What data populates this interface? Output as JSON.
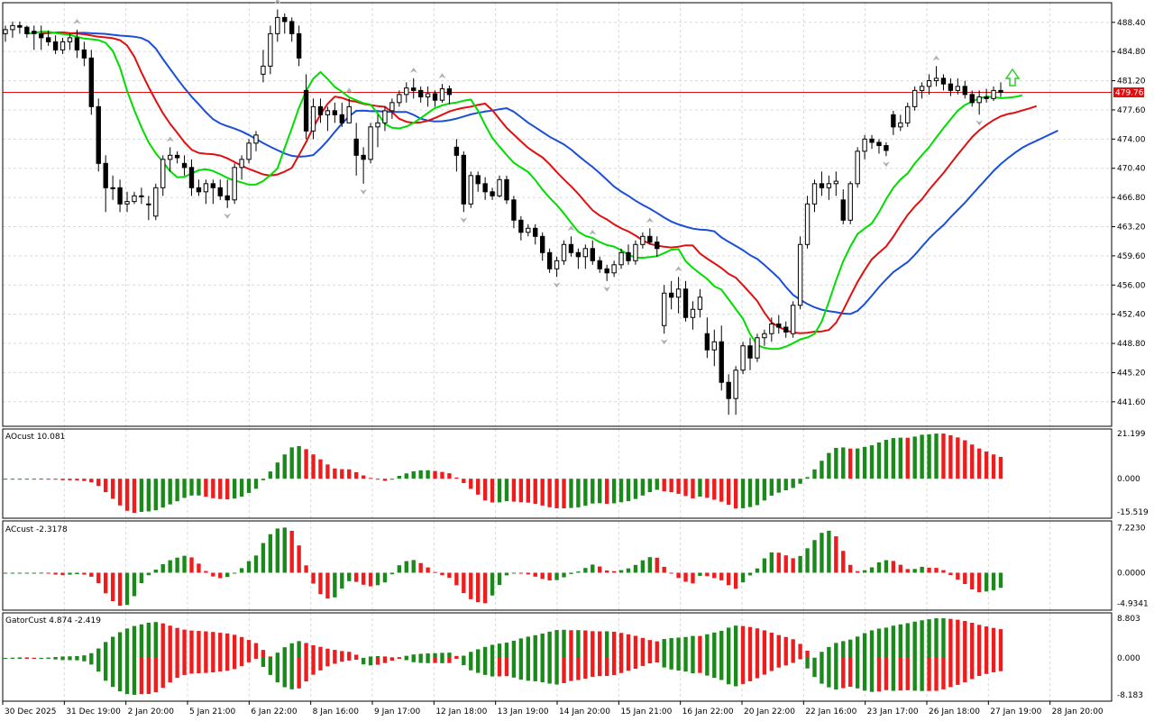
{
  "chart_data": {
    "type": "candlestick",
    "colors": {
      "frame": "#000000",
      "grid": "#d9d9d9",
      "bull_candle": "#ffffff",
      "bear_candle": "#000000",
      "jaw": "#1a4fd6",
      "teeth": "#e01010",
      "lips": "#00dd00",
      "up_bar": "#1a8a1a",
      "down_bar": "#ee1c1c",
      "price_line": "#e01010",
      "fractal": "#b0b0b0"
    },
    "x_labels": [
      "30 Dec 2025",
      "31 Dec 19:00",
      "2 Jan 20:00",
      "5 Jan 21:00",
      "6 Jan 22:00",
      "8 Jan 16:00",
      "9 Jan 17:00",
      "12 Jan 18:00",
      "13 Jan 19:00",
      "14 Jan 20:00",
      "15 Jan 21:00",
      "16 Jan 22:00",
      "20 Jan 22:00",
      "22 Jan 16:00",
      "23 Jan 17:00",
      "26 Jan 18:00",
      "27 Jan 19:00",
      "28 Jan 20:00"
    ],
    "main": {
      "y_ticks": [
        "488.40",
        "484.80",
        "481.20",
        "477.60",
        "474.00",
        "470.40",
        "466.80",
        "463.20",
        "459.60",
        "456.00",
        "452.40",
        "448.80",
        "445.20",
        "441.60"
      ],
      "ylim": [
        438.8,
        490.6
      ],
      "current_price": "479.76",
      "current_price_value": 479.76,
      "candles": [
        [
          487,
          488,
          486,
          487.5
        ],
        [
          487.5,
          488.5,
          486.5,
          488
        ],
        [
          488,
          488.5,
          487,
          487.8
        ],
        [
          487.8,
          488,
          486.5,
          487
        ],
        [
          487.3,
          488,
          485,
          487
        ],
        [
          487,
          488,
          485,
          486.5
        ],
        [
          486.5,
          487.4,
          485.5,
          486
        ],
        [
          486,
          486.8,
          484.5,
          485
        ],
        [
          485,
          486.5,
          484.5,
          486
        ],
        [
          486,
          487,
          485,
          486.5
        ],
        [
          486.5,
          487.5,
          484,
          485
        ],
        [
          485,
          486,
          483,
          484
        ],
        [
          484,
          485,
          477,
          478
        ],
        [
          478,
          479,
          470,
          471
        ],
        [
          471,
          472,
          465,
          468
        ],
        [
          468,
          469.5,
          466.5,
          468
        ],
        [
          468,
          469,
          465,
          466
        ],
        [
          466,
          467.5,
          465,
          466.3
        ],
        [
          466.3,
          467.5,
          466,
          467
        ],
        [
          467,
          468,
          466,
          467
        ],
        [
          466,
          467,
          464,
          466
        ],
        [
          464.5,
          468.5,
          464,
          468
        ],
        [
          468,
          472,
          467,
          471.5
        ],
        [
          471.5,
          473,
          470,
          472
        ],
        [
          472,
          472.5,
          471,
          471.7
        ],
        [
          471,
          472,
          469.5,
          470.5
        ],
        [
          470.5,
          471.5,
          467,
          468
        ],
        [
          468,
          469,
          467,
          467.5
        ],
        [
          467.5,
          469,
          466,
          468.5
        ],
        [
          468.5,
          469,
          466,
          468
        ],
        [
          468,
          469,
          466.5,
          467
        ],
        [
          467,
          469,
          465.5,
          466.5
        ],
        [
          466.5,
          471,
          466,
          470.5
        ],
        [
          470.5,
          472,
          469,
          471.5
        ],
        [
          471.5,
          474,
          471,
          473.5
        ],
        [
          473.5,
          475,
          472.5,
          474.5
        ],
        [
          482,
          485,
          481,
          483
        ],
        [
          483,
          488,
          482,
          487
        ],
        [
          487,
          490,
          486,
          489
        ],
        [
          489,
          489.5,
          487,
          488.5
        ],
        [
          488.5,
          489,
          486,
          487
        ],
        [
          487,
          488,
          483,
          484
        ],
        [
          480,
          482,
          474,
          475
        ],
        [
          475,
          479,
          474,
          478
        ],
        [
          478,
          479,
          476,
          477
        ],
        [
          477,
          478,
          475,
          477.5
        ],
        [
          477.5,
          478.5,
          476,
          477
        ],
        [
          477,
          478.5,
          475.5,
          476
        ],
        [
          476,
          479,
          476,
          478
        ],
        [
          474,
          476,
          469.5,
          472
        ],
        [
          472,
          473,
          468.5,
          471.5
        ],
        [
          471.5,
          476,
          471,
          475.5
        ],
        [
          475.5,
          477,
          473,
          476
        ],
        [
          476,
          478,
          475,
          477.5
        ],
        [
          477.5,
          479,
          476.5,
          478.5
        ],
        [
          478.5,
          480,
          478,
          479.5
        ],
        [
          479.5,
          481,
          478.5,
          480.3
        ],
        [
          480.3,
          481.5,
          479,
          480
        ],
        [
          480,
          480.5,
          478.5,
          479.2
        ],
        [
          479.2,
          480.5,
          478,
          479.6
        ],
        [
          479.6,
          480,
          478,
          478.8
        ],
        [
          478.8,
          480.8,
          478.5,
          480.2
        ],
        [
          480.2,
          480.6,
          478.3,
          479.5
        ],
        [
          473,
          474,
          470,
          472
        ],
        [
          472,
          472.5,
          465,
          466
        ],
        [
          466,
          470,
          465.5,
          469.5
        ],
        [
          469.5,
          470,
          467.5,
          468.5
        ],
        [
          468.5,
          469.3,
          466.5,
          467.5
        ],
        [
          467.5,
          468,
          466.5,
          467
        ],
        [
          467,
          469.5,
          466.8,
          469
        ],
        [
          469,
          469.5,
          466,
          466.5
        ],
        [
          466.5,
          467,
          463,
          464
        ],
        [
          464,
          464.5,
          461.5,
          462.5
        ],
        [
          462.5,
          463.5,
          462,
          463
        ],
        [
          463,
          463.5,
          461,
          462
        ],
        [
          462,
          462.5,
          459,
          460
        ],
        [
          460,
          460.5,
          457.5,
          458
        ],
        [
          458,
          459.5,
          457,
          459
        ],
        [
          459,
          461.5,
          458.5,
          461
        ],
        [
          461,
          462,
          459.5,
          460
        ],
        [
          460,
          460.5,
          458,
          459.5
        ],
        [
          459.5,
          461,
          458,
          460.5
        ],
        [
          460.5,
          461.5,
          458.5,
          459
        ],
        [
          459,
          459.5,
          457.5,
          458
        ],
        [
          458,
          458.5,
          456.5,
          457.5
        ],
        [
          457.5,
          459,
          457,
          458.5
        ],
        [
          458.5,
          460.5,
          458,
          460
        ],
        [
          460,
          461,
          458.5,
          459
        ],
        [
          459,
          461.5,
          458.5,
          461
        ],
        [
          461,
          462.5,
          460.5,
          462
        ],
        [
          462,
          463,
          461,
          461.3
        ],
        [
          461.3,
          462,
          459.5,
          460.5
        ],
        [
          451,
          456,
          450,
          455
        ],
        [
          455,
          456.5,
          453,
          454.5
        ],
        [
          454.5,
          457,
          452.5,
          455.5
        ],
        [
          455.5,
          456.5,
          451.5,
          452
        ],
        [
          452,
          454,
          450.5,
          453
        ],
        [
          453,
          455.5,
          452,
          454.5
        ],
        [
          450,
          452,
          447,
          448
        ],
        [
          448,
          450.5,
          446,
          449
        ],
        [
          449,
          451,
          443,
          444
        ],
        [
          444,
          445,
          440,
          442
        ],
        [
          442,
          446,
          440,
          445.5
        ],
        [
          445.5,
          449,
          445,
          448.5
        ],
        [
          448.5,
          449.5,
          445.5,
          447
        ],
        [
          447,
          450,
          446.5,
          449.5
        ],
        [
          449.5,
          450.5,
          448.5,
          450
        ],
        [
          450,
          452,
          449,
          451.2
        ],
        [
          451.2,
          452.3,
          450,
          450.8
        ],
        [
          450.8,
          451.5,
          449.5,
          450.2
        ],
        [
          450,
          454,
          449.5,
          453.5
        ],
        [
          453.5,
          462,
          453,
          461
        ],
        [
          461,
          467,
          460.5,
          466
        ],
        [
          466,
          469,
          465,
          468.5
        ],
        [
          468.5,
          470,
          467,
          468
        ],
        [
          468,
          469.5,
          466.5,
          468.5
        ],
        [
          468.5,
          470,
          467,
          468.8
        ],
        [
          466.5,
          467.8,
          463.5,
          464
        ],
        [
          464,
          468.8,
          463.5,
          468.5
        ],
        [
          468.5,
          473,
          468,
          472.5
        ],
        [
          472.5,
          474.5,
          471.5,
          474
        ],
        [
          474,
          474.5,
          472.8,
          473.6
        ],
        [
          473.6,
          474,
          472.2,
          473.2
        ],
        [
          473.2,
          473.6,
          471.9,
          472.6
        ],
        [
          477,
          477.5,
          474.5,
          475.5
        ],
        [
          475.5,
          477,
          475,
          476
        ],
        [
          476,
          478.5,
          475.5,
          478
        ],
        [
          478,
          480.5,
          477.5,
          480
        ],
        [
          480,
          481,
          479,
          480.5
        ],
        [
          480.5,
          482,
          479.5,
          481.2
        ],
        [
          481.2,
          483,
          480.5,
          481.5
        ],
        [
          481.5,
          482,
          480,
          480.8
        ],
        [
          480.8,
          481.5,
          479.3,
          480
        ],
        [
          480,
          481.5,
          479.5,
          480.5
        ],
        [
          480.5,
          481.2,
          479,
          479.5
        ],
        [
          479.5,
          480,
          478,
          478.5
        ],
        [
          478.5,
          480,
          477,
          479.2
        ],
        [
          479.2,
          480.2,
          478.5,
          479
        ],
        [
          479,
          480.5,
          478.7,
          480
        ],
        [
          480,
          481,
          479.2,
          479.76
        ]
      ]
    },
    "ao": {
      "label": "AOcust 10.081",
      "y_ticks": [
        "21.199",
        "0.000",
        "-15.519"
      ],
      "ylim": [
        -17.7,
        22.5
      ]
    },
    "ac": {
      "label": "ACcust -2.3178",
      "y_ticks": [
        "7.2230",
        "0.0000",
        "-4.9341"
      ],
      "ylim": [
        -5.7,
        8.0
      ]
    },
    "gator": {
      "label": "GatorCust 4.874 -2.419",
      "y_ticks": [
        "8.803",
        "0.000",
        "-8.183"
      ],
      "ylim": [
        -9.2,
        9.6
      ]
    }
  }
}
